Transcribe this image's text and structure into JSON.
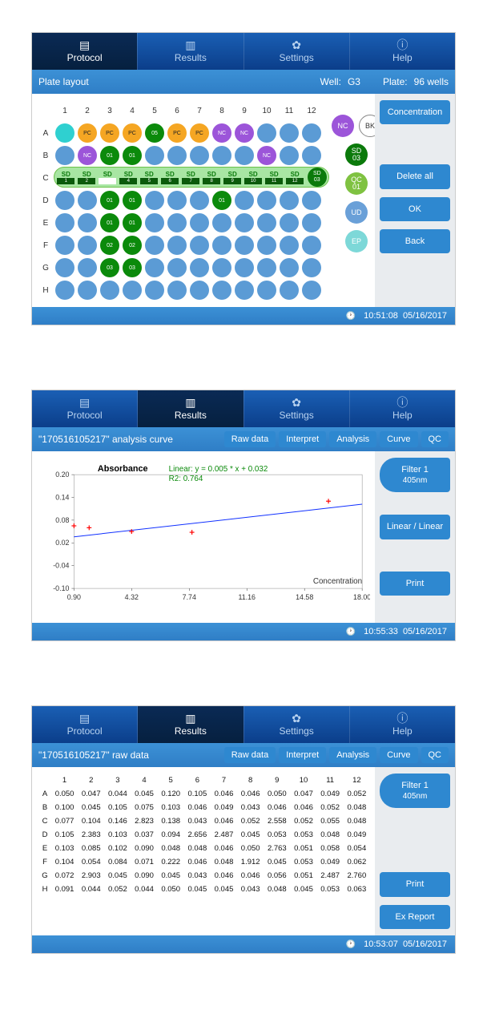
{
  "nav": {
    "protocol": "Protocol",
    "results": "Results",
    "settings": "Settings",
    "help": "Help"
  },
  "colors": {
    "nav_bg": "#0b3e8a",
    "nav_active": "#06203f",
    "subbar": "#2f7ec6",
    "well_default": "#5b9bd5",
    "well_cyan": "#2fd0d0",
    "well_orange": "#f5a623",
    "well_green": "#0b8a0b",
    "well_purple": "#9c55d9",
    "well_lgreen": "#7fc241"
  },
  "screen1": {
    "subbar": {
      "title": "Plate layout",
      "well_label": "Well:",
      "well_value": "G3",
      "plate_label": "Plate:",
      "plate_value": "96 wells"
    },
    "cols": [
      "1",
      "2",
      "3",
      "4",
      "5",
      "6",
      "7",
      "8",
      "9",
      "10",
      "11",
      "12"
    ],
    "rows": [
      "A",
      "B",
      "C",
      "D",
      "E",
      "F",
      "G",
      "H"
    ],
    "wells": {
      "A": [
        {
          "c": "cyan"
        },
        {
          "c": "orange",
          "t": "PC"
        },
        {
          "c": "orange",
          "t": "PC"
        },
        {
          "c": "orange",
          "t": "PC"
        },
        {
          "c": "green",
          "t": "05"
        },
        {
          "c": "orange",
          "t": "PC"
        },
        {
          "c": "orange",
          "t": "PC"
        },
        {
          "c": "purple",
          "t": "NC"
        },
        {
          "c": "purple",
          "t": "NC"
        },
        {
          "c": ""
        },
        {
          "c": ""
        },
        {
          "c": ""
        }
      ],
      "B": [
        {
          "c": ""
        },
        {
          "c": "purple",
          "t": "NC"
        },
        {
          "c": "green",
          "t": "01"
        },
        {
          "c": "green",
          "t": "01"
        },
        {
          "c": ""
        },
        {
          "c": ""
        },
        {
          "c": ""
        },
        {
          "c": ""
        },
        {
          "c": ""
        },
        {
          "c": "purple",
          "t": "NC"
        },
        {
          "c": ""
        },
        {
          "c": ""
        }
      ],
      "C": [
        {
          "c": ""
        },
        {
          "c": ""
        },
        {
          "c": ""
        },
        {
          "c": ""
        },
        {
          "c": ""
        },
        {
          "c": ""
        },
        {
          "c": ""
        },
        {
          "c": ""
        },
        {
          "c": ""
        },
        {
          "c": ""
        },
        {
          "c": ""
        },
        {
          "c": ""
        }
      ],
      "D": [
        {
          "c": ""
        },
        {
          "c": ""
        },
        {
          "c": "green",
          "t": "01"
        },
        {
          "c": "green",
          "t": "01"
        },
        {
          "c": ""
        },
        {
          "c": ""
        },
        {
          "c": ""
        },
        {
          "c": "green",
          "t": "01"
        },
        {
          "c": ""
        },
        {
          "c": ""
        },
        {
          "c": ""
        },
        {
          "c": ""
        }
      ],
      "E": [
        {
          "c": ""
        },
        {
          "c": ""
        },
        {
          "c": "green",
          "t": "01"
        },
        {
          "c": "green",
          "t": "01"
        },
        {
          "c": ""
        },
        {
          "c": ""
        },
        {
          "c": ""
        },
        {
          "c": ""
        },
        {
          "c": ""
        },
        {
          "c": ""
        },
        {
          "c": ""
        },
        {
          "c": ""
        }
      ],
      "F": [
        {
          "c": ""
        },
        {
          "c": ""
        },
        {
          "c": "green",
          "t": "02"
        },
        {
          "c": "green",
          "t": "02"
        },
        {
          "c": ""
        },
        {
          "c": ""
        },
        {
          "c": ""
        },
        {
          "c": ""
        },
        {
          "c": ""
        },
        {
          "c": ""
        },
        {
          "c": ""
        },
        {
          "c": ""
        }
      ],
      "G": [
        {
          "c": ""
        },
        {
          "c": ""
        },
        {
          "c": "green",
          "t": "03"
        },
        {
          "c": "green",
          "t": "03"
        },
        {
          "c": ""
        },
        {
          "c": ""
        },
        {
          "c": ""
        },
        {
          "c": ""
        },
        {
          "c": ""
        },
        {
          "c": ""
        },
        {
          "c": ""
        },
        {
          "c": ""
        }
      ],
      "H": [
        {
          "c": ""
        },
        {
          "c": ""
        },
        {
          "c": ""
        },
        {
          "c": ""
        },
        {
          "c": ""
        },
        {
          "c": ""
        },
        {
          "c": ""
        },
        {
          "c": ""
        },
        {
          "c": ""
        },
        {
          "c": ""
        },
        {
          "c": ""
        },
        {
          "c": ""
        }
      ]
    },
    "sd_ruler": {
      "label": "SD",
      "cells": [
        "1",
        "2",
        "3",
        "4",
        "5",
        "6",
        "7",
        "8",
        "9",
        "10",
        "11",
        "12"
      ],
      "white_idx": 2,
      "end_label": "SD\n03"
    },
    "legend": [
      {
        "k": "nc",
        "t": "NC"
      },
      {
        "k": "bk",
        "t": "BK"
      },
      {
        "k": "sd",
        "t": "SD\n03"
      },
      {
        "k": "qc",
        "t": "QC\n01"
      },
      {
        "k": "ud",
        "t": "UD"
      },
      {
        "k": "ep",
        "t": "EP"
      }
    ],
    "sidebar": [
      {
        "k": "concentration",
        "t": "Concentration"
      },
      {
        "k": "delete-all",
        "t": "Delete all"
      },
      {
        "k": "ok",
        "t": "OK"
      },
      {
        "k": "back",
        "t": "Back"
      }
    ],
    "footer": {
      "time": "10:51:08",
      "date": "05/16/2017"
    }
  },
  "screen2": {
    "subbar_title": "\"170516105217\" analysis curve",
    "subtabs": [
      "Raw data",
      "Interpret",
      "Analysis",
      "Curve",
      "QC"
    ],
    "chart": {
      "type": "scatter-line",
      "y_label": "Absorbance",
      "x_label": "Concentration",
      "eq_line1": "Linear:  y = 0.005 * x + 0.032",
      "eq_line2": "R2:  0.764",
      "xlim": [
        0.9,
        18.0
      ],
      "ylim": [
        -0.1,
        0.2
      ],
      "xticks": [
        0.9,
        4.32,
        7.74,
        11.16,
        14.58,
        18.0
      ],
      "yticks": [
        -0.1,
        -0.04,
        0.02,
        0.08,
        0.14,
        0.2
      ],
      "points": [
        [
          0.9,
          0.065
        ],
        [
          1.8,
          0.06
        ],
        [
          4.32,
          0.05
        ],
        [
          7.9,
          0.048
        ],
        [
          16.0,
          0.13
        ]
      ],
      "line": [
        [
          0.9,
          0.036
        ],
        [
          18.0,
          0.122
        ]
      ],
      "point_color": "#ff0000",
      "line_color": "#1030ff",
      "grid_color": "#cccccc",
      "bg": "#ffffff",
      "title_fontsize": 11
    },
    "sidebar": [
      {
        "k": "filter1",
        "t": "Filter 1",
        "sub": "405nm",
        "pill": true
      },
      {
        "k": "linear",
        "t": "Linear / Linear"
      },
      {
        "k": "print",
        "t": "Print"
      }
    ],
    "footer": {
      "time": "10:55:33",
      "date": "05/16/2017"
    }
  },
  "screen3": {
    "subbar_title": "\"170516105217\" raw data",
    "subtabs": [
      "Raw data",
      "Interpret",
      "Analysis",
      "Curve",
      "QC"
    ],
    "cols": [
      "1",
      "2",
      "3",
      "4",
      "5",
      "6",
      "7",
      "8",
      "9",
      "10",
      "11",
      "12"
    ],
    "rows": [
      "A",
      "B",
      "C",
      "D",
      "E",
      "F",
      "G",
      "H"
    ],
    "data": [
      [
        0.05,
        0.047,
        0.044,
        0.045,
        0.12,
        0.105,
        0.046,
        0.046,
        0.05,
        0.047,
        0.049,
        0.052
      ],
      [
        0.1,
        0.045,
        0.105,
        0.075,
        0.103,
        0.046,
        0.049,
        0.043,
        0.046,
        0.046,
        0.052,
        0.048
      ],
      [
        0.077,
        0.104,
        0.146,
        2.823,
        0.138,
        0.043,
        0.046,
        0.052,
        2.558,
        0.052,
        0.055,
        0.048
      ],
      [
        0.105,
        2.383,
        0.103,
        0.037,
        0.094,
        2.656,
        2.487,
        0.045,
        0.053,
        0.053,
        0.048,
        0.049
      ],
      [
        0.103,
        0.085,
        0.102,
        0.09,
        0.048,
        0.048,
        0.046,
        0.05,
        2.763,
        0.051,
        0.058,
        0.054
      ],
      [
        0.104,
        0.054,
        0.084,
        0.071,
        0.222,
        0.046,
        0.048,
        1.912,
        0.045,
        0.053,
        0.049,
        0.062
      ],
      [
        0.072,
        2.903,
        0.045,
        0.09,
        0.045,
        0.043,
        0.046,
        0.046,
        0.056,
        0.051,
        2.487,
        2.76
      ],
      [
        0.091,
        0.044,
        0.052,
        0.044,
        0.05,
        0.045,
        0.045,
        0.043,
        0.048,
        0.045,
        0.053,
        0.063
      ]
    ],
    "sidebar": [
      {
        "k": "filter1",
        "t": "Filter 1",
        "sub": "405nm",
        "pill": true
      },
      {
        "k": "print",
        "t": "Print"
      },
      {
        "k": "exreport",
        "t": "Ex Report"
      }
    ],
    "footer": {
      "time": "10:53:07",
      "date": "05/16/2017"
    }
  }
}
